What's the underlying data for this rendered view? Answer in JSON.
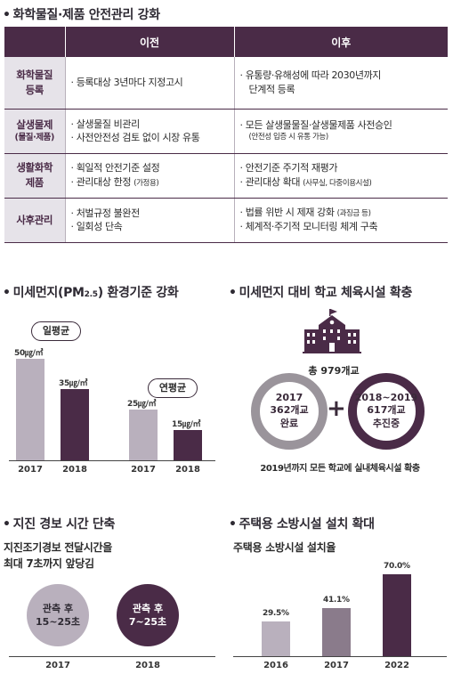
{
  "section1": {
    "title": "화학물질·제품 안전관리 강화",
    "headers": [
      "",
      "이전",
      "이후"
    ],
    "rows": [
      {
        "category": [
          "화학물질",
          "등록"
        ],
        "before": [
          "· 등록대상 3년마다 지정고시"
        ],
        "after": [
          "· 유통량·유해성에 따라 2030년까지",
          "단계적 등록"
        ]
      },
      {
        "category": [
          "살생물제",
          "(물질·제품)"
        ],
        "before": [
          "· 살생물질 비관리",
          "· 사전안전성 검토 없이 시장 유통"
        ],
        "after": [
          "· 모든 살생물물질·살생물제품 사전승인",
          "(안전성 입증 시 유통 가능)"
        ]
      },
      {
        "category": [
          "생활화학",
          "제품"
        ],
        "before": [
          "· 획일적 안전기준 설정",
          "· 관리대상 한정",
          "(가정용)"
        ],
        "after": [
          "· 안전기준 주기적 재평가",
          "· 관리대상 확대",
          "(사무실, 다중이용시설)"
        ]
      },
      {
        "category": [
          "사후관리"
        ],
        "before": [
          "· 처벌규정 불완전",
          "· 일회성 단속"
        ],
        "after": [
          "· 법률 위반 시 제재 강화",
          "(과징금 등)",
          "· 체계적·주기적 모니터링 체계 구축"
        ]
      }
    ]
  },
  "section2": {
    "title_main": "미세먼지(PM",
    "title_sub": "2.5",
    "title_end": ") 환경기준 강화",
    "chart_data": [
      {
        "type": "bar",
        "title": "일평균",
        "categories": [
          "2017",
          "2018"
        ],
        "values": [
          50,
          35
        ],
        "labels": [
          "50㎍/㎥",
          "35㎍/㎥"
        ],
        "colors": [
          "#b9b0bd",
          "#4a2b47"
        ]
      },
      {
        "type": "bar",
        "title": "연평균",
        "categories": [
          "2017",
          "2018"
        ],
        "values": [
          25,
          15
        ],
        "labels": [
          "25㎍/㎥",
          "15㎍/㎥"
        ],
        "colors": [
          "#b9b0bd",
          "#4a2b47"
        ]
      }
    ]
  },
  "section3": {
    "title": "미세먼지 대비 학교 체육시설 확충",
    "total": "총 979개교",
    "left_ring": [
      "2017",
      "362개교",
      "완료"
    ],
    "right_ring": [
      "2018~2019",
      "617개교",
      "추진중"
    ],
    "plus": "+",
    "caption": "2019년까지 모든 학교에 실내체육시설 확충",
    "colors": {
      "dark": "#4a2b47",
      "gray": "#9a949b"
    }
  },
  "section4": {
    "title": "지진 경보 시간 단축",
    "subtitle": [
      "지진조기경보 전달시간을",
      "최대 7초까지 앞당김"
    ],
    "circles": [
      {
        "lines": [
          "관측 후",
          "15~25초"
        ],
        "year": "2017"
      },
      {
        "lines": [
          "관측 후",
          "7~25초"
        ],
        "year": "2018"
      }
    ]
  },
  "section5": {
    "title": "주택용 소방시설 설치 확대",
    "subtitle": "주택용 소방시설 설치율",
    "chart_data": {
      "type": "bar",
      "categories": [
        "2016",
        "2017",
        "2022"
      ],
      "values": [
        29.5,
        41.1,
        70.0
      ],
      "labels": [
        "29.5%",
        "41.1%",
        "70.0%"
      ],
      "colors": [
        "#b9b0bd",
        "#8a7b8b",
        "#4a2b47"
      ]
    }
  }
}
